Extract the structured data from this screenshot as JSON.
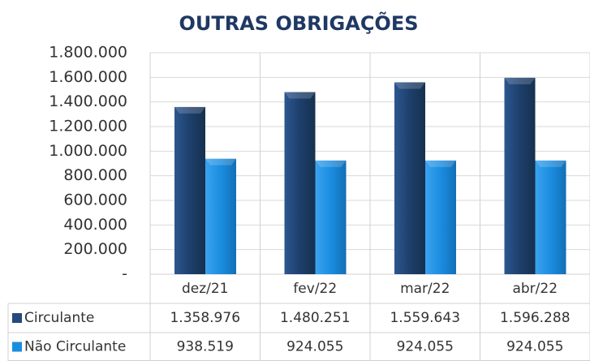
{
  "chart_data": {
    "type": "bar",
    "title": "OUTRAS OBRIGAÇÕES",
    "categories": [
      "dez/21",
      "fev/22",
      "mar/22",
      "abr/22"
    ],
    "series": [
      {
        "name": "Circulante",
        "color": "#25497a",
        "values": [
          1358976,
          1480251,
          1559643,
          1596288
        ],
        "value_labels": [
          "1.358.976",
          "1.480.251",
          "1.559.643",
          "1.596.288"
        ]
      },
      {
        "name": "Não Circulante",
        "color": "#1b8de0",
        "values": [
          938519,
          924055,
          924055,
          924055
        ],
        "value_labels": [
          "938.519",
          "924.055",
          "924.055",
          "924.055"
        ]
      }
    ],
    "ylim": [
      0,
      1800000
    ],
    "yticks": [
      {
        "value": 0,
        "label": "-"
      },
      {
        "value": 200000,
        "label": "200.000"
      },
      {
        "value": 400000,
        "label": "400.000"
      },
      {
        "value": 600000,
        "label": "600.000"
      },
      {
        "value": 800000,
        "label": "800.000"
      },
      {
        "value": 1000000,
        "label": "1.000.000"
      },
      {
        "value": 1200000,
        "label": "1.200.000"
      },
      {
        "value": 1400000,
        "label": "1.400.000"
      },
      {
        "value": 1600000,
        "label": "1.600.000"
      },
      {
        "value": 1800000,
        "label": "1.800.000"
      }
    ],
    "grid": true
  }
}
